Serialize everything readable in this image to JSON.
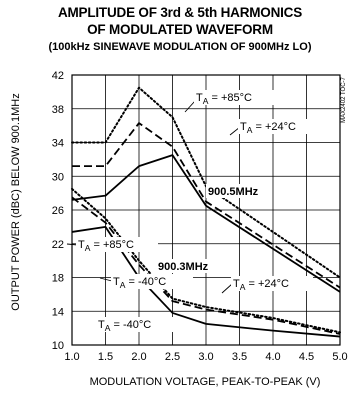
{
  "chart_data": {
    "type": "line",
    "title": "AMPLITUDE OF 3rd & 5th HARMONICS",
    "title2": "OF MODULATED WAVEFORM",
    "subtitle": "(100kHz SINEWAVE MODULATION OF 900MHz LO)",
    "xlabel": "MODULATION VOLTAGE, PEAK-TO-PEAK (V)",
    "ylabel": "OUTPUT POWER (dBC) BELOW 900.1MHz",
    "xlim": [
      1.0,
      5.0
    ],
    "ylim": [
      10,
      42
    ],
    "x_ticks": [
      "1.0",
      "1.5",
      "2.0",
      "2.5",
      "3.0",
      "3.5",
      "4.0",
      "4.5",
      "5.0"
    ],
    "y_ticks": [
      "10",
      "14",
      "18",
      "22",
      "26",
      "30",
      "34",
      "38",
      "42"
    ],
    "grid": true,
    "code_label": "MAX2402 TOC-7",
    "series": [
      {
        "name": "900.5MHz T_A = +85°C",
        "style": "dotted",
        "x": [
          1.0,
          1.5,
          2.0,
          2.5,
          3.0,
          5.0
        ],
        "y": [
          34.0,
          34.0,
          40.5,
          37.0,
          28.8,
          18.0
        ]
      },
      {
        "name": "900.5MHz T_A = +24°C",
        "style": "dashed",
        "x": [
          1.0,
          1.5,
          2.0,
          2.5,
          3.0,
          5.0
        ],
        "y": [
          31.2,
          31.2,
          36.3,
          33.5,
          27.0,
          16.8
        ]
      },
      {
        "name": "900.5MHz T_A = -40°C",
        "style": "solid",
        "x": [
          1.0,
          1.5,
          2.0,
          2.5,
          3.0,
          5.0
        ],
        "y": [
          27.2,
          27.7,
          31.2,
          32.5,
          26.5,
          16.3
        ]
      },
      {
        "name": "900.3MHz T_A = +85°C",
        "style": "dotted",
        "x": [
          1.0,
          1.5,
          2.0,
          2.5,
          3.0,
          4.0,
          5.0
        ],
        "y": [
          28.5,
          25.0,
          20.0,
          15.5,
          14.5,
          13.2,
          11.5
        ]
      },
      {
        "name": "900.3MHz T_A = +24°C",
        "style": "dashed",
        "x": [
          1.0,
          1.5,
          2.0,
          2.5,
          3.0,
          4.0,
          5.0
        ],
        "y": [
          27.5,
          24.5,
          19.5,
          15.2,
          14.2,
          13.0,
          11.3
        ]
      },
      {
        "name": "900.3MHz T_A = -40°C",
        "style": "solid",
        "x": [
          1.0,
          1.5,
          2.0,
          2.5,
          3.0,
          4.0,
          5.0
        ],
        "y": [
          23.4,
          24.0,
          18.0,
          13.8,
          12.5,
          11.7,
          11.0
        ]
      }
    ],
    "annotations": {
      "ta85_top": {
        "sub_pre": "T",
        "sub": "A",
        "rest": " = +85°C"
      },
      "ta24_top": {
        "sub_pre": "T",
        "sub": "A",
        "rest": " = +24°C"
      },
      "ta40_top": {
        "sub_pre": "T",
        "sub": "A",
        "rest": " = -40°C"
      },
      "ta85_mid": {
        "sub_pre": "T",
        "sub": "A",
        "rest": " = +85°C"
      },
      "ta24_bot": {
        "sub_pre": "T",
        "sub": "A",
        "rest": " = +24°C"
      },
      "ta40_bot": {
        "sub_pre": "T",
        "sub": "A",
        "rest": " = -40°C"
      },
      "f_high": "900.5MHz",
      "f_low": "900.3MHz"
    }
  }
}
